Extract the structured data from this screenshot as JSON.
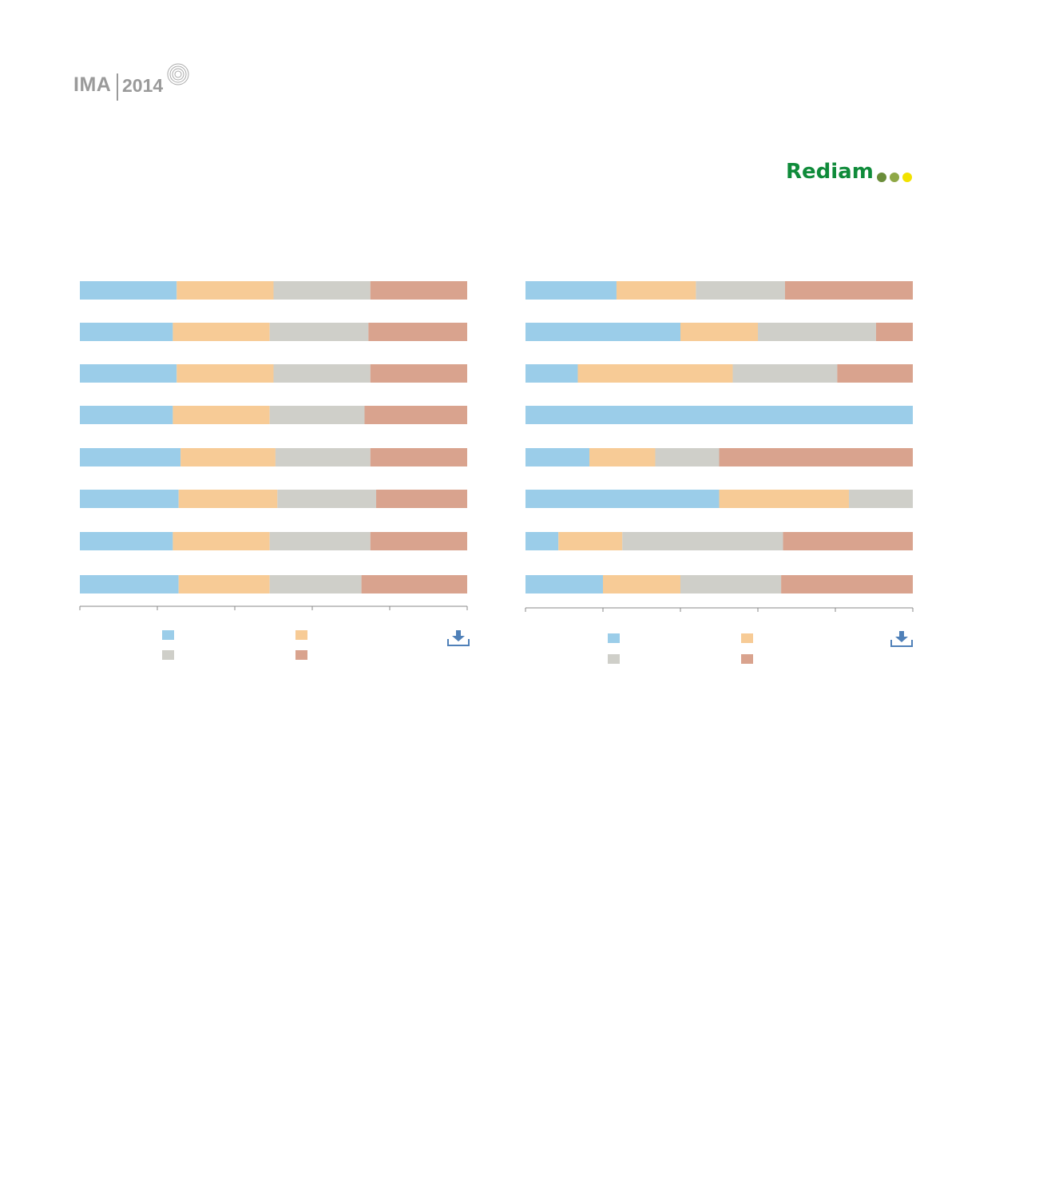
{
  "header": {
    "ima_logo": {
      "brand": "IMA",
      "year": "2014"
    },
    "rediam_logo": {
      "text": "Rediam",
      "dot_colors": [
        "#6a8d3a",
        "#8fa846",
        "#f2e200"
      ]
    }
  },
  "colors": {
    "series": [
      "#9bcde9",
      "#f7cb96",
      "#cfcfc9",
      "#d9a38e"
    ],
    "axis": "#888888",
    "download_icon": "#4f80b8"
  },
  "chart_data": [
    {
      "type": "bar",
      "orientation": "horizontal",
      "stacked": true,
      "percent_stacked": true,
      "xlim": [
        0,
        100
      ],
      "x_ticks": [
        0,
        20,
        40,
        60,
        80,
        100
      ],
      "series": [
        {
          "values": [
            25,
            24,
            25,
            24,
            26,
            25.5,
            24,
            25.5
          ]
        },
        {
          "values": [
            25,
            25,
            25,
            25,
            24.5,
            25.5,
            25,
            23.5
          ]
        },
        {
          "values": [
            25,
            25.5,
            25,
            24.5,
            24.5,
            25.5,
            26,
            23.7
          ]
        },
        {
          "values": [
            25,
            25.5,
            25,
            26.5,
            25,
            23.5,
            25,
            27.3
          ]
        }
      ],
      "download_icon": "download-icon"
    },
    {
      "type": "bar",
      "orientation": "horizontal",
      "stacked": true,
      "percent_stacked": true,
      "xlim": [
        0,
        100
      ],
      "x_ticks": [
        0,
        20,
        40,
        60,
        80,
        100
      ],
      "series": [
        {
          "values": [
            23.5,
            40,
            13.5,
            100,
            16.5,
            50,
            8.5,
            20
          ]
        },
        {
          "values": [
            20.5,
            20,
            40,
            0,
            17,
            33.5,
            16.5,
            20
          ]
        },
        {
          "values": [
            23,
            30.5,
            27,
            0,
            16.5,
            16.5,
            41.5,
            26
          ]
        },
        {
          "values": [
            33,
            9.5,
            19.5,
            0,
            50,
            0,
            33.5,
            34
          ]
        }
      ],
      "download_icon": "download-icon"
    }
  ]
}
